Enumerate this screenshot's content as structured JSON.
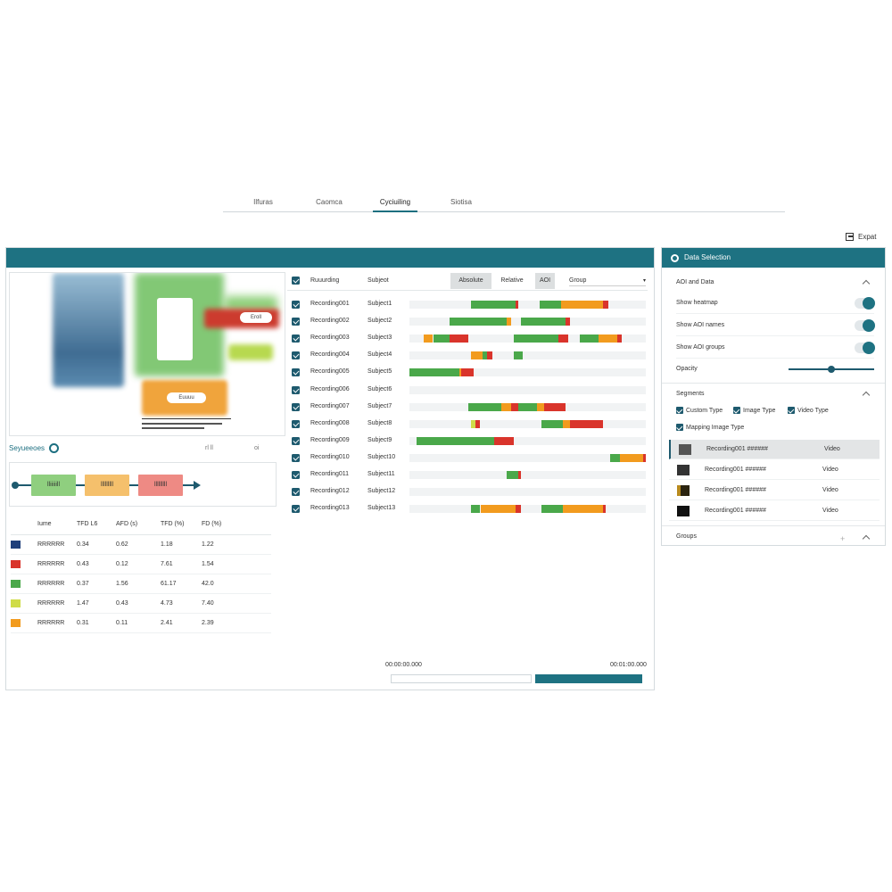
{
  "nav": {
    "tabs": [
      {
        "label": "Ilfuras",
        "active": false
      },
      {
        "label": "Caomca",
        "active": false
      },
      {
        "label": "Cyciuiling",
        "active": true
      },
      {
        "label": "Siotisa",
        "active": false
      }
    ]
  },
  "toolbar": {
    "export_label": "Expat"
  },
  "heatmap": {
    "labels": [
      "Eroll",
      "Euuuu"
    ]
  },
  "sequences": {
    "title": "Seyueeoes",
    "count": "",
    "controls": [
      "rl ll",
      "oi"
    ],
    "chips": [
      {
        "label": "lliiiiill",
        "color": "#8fcf7f"
      },
      {
        "label": "lllllllll",
        "color": "#f5c06c"
      },
      {
        "label": "lllllllll",
        "color": "#ee8a84"
      }
    ]
  },
  "aoi_table": {
    "headers": [
      "Iume",
      "TFD L6",
      "AFD (s)",
      "TFD (%)",
      "FD (%)"
    ],
    "rows": [
      {
        "name": "RRRRRR",
        "color": "#1f3f7a",
        "tfd": "0.34",
        "afd": "0.62",
        "tfd_pct": "1.18",
        "fd_pct": "1.22"
      },
      {
        "name": "RRRRRR",
        "color": "#d9342b",
        "tfd": "0.43",
        "afd": "0.12",
        "tfd_pct": "7.61",
        "fd_pct": "1.54"
      },
      {
        "name": "RRRRRR",
        "color": "#4aa84a",
        "tfd": "0.37",
        "afd": "1.56",
        "tfd_pct": "61.17",
        "fd_pct": "42.0"
      },
      {
        "name": "RRRRRR",
        "color": "#cfdc48",
        "tfd": "1.47",
        "afd": "0.43",
        "tfd_pct": "4.73",
        "fd_pct": "7.40"
      },
      {
        "name": "RRRRRR",
        "color": "#f29b1e",
        "tfd": "0.31",
        "afd": "0.11",
        "tfd_pct": "2.41",
        "fd_pct": "2.39"
      }
    ]
  },
  "recordings": {
    "col_recording": "Ruuurding",
    "col_subject": "Subjeot",
    "segment_buttons": [
      "Absolute",
      "Relative",
      "AOI"
    ],
    "group_label": "Group",
    "rows": [
      {
        "recording": "Recording001",
        "subject": "Subject1",
        "bars": [
          [
            0.26,
            0.19,
            "#4aa84a"
          ],
          [
            0.45,
            0.01,
            "#d9342b"
          ],
          [
            0.55,
            0.09,
            "#4aa84a"
          ],
          [
            0.64,
            0.18,
            "#f29b1e"
          ],
          [
            0.82,
            0.02,
            "#d9342b"
          ]
        ]
      },
      {
        "recording": "Recording002",
        "subject": "Subject2",
        "bars": [
          [
            0.17,
            0.24,
            "#4aa84a"
          ],
          [
            0.41,
            0.02,
            "#f29b1e"
          ],
          [
            0.47,
            0.19,
            "#4aa84a"
          ],
          [
            0.66,
            0.02,
            "#d9342b"
          ]
        ]
      },
      {
        "recording": "Recording003",
        "subject": "Subject3",
        "bars": [
          [
            0.06,
            0.04,
            "#f29b1e"
          ],
          [
            0.1,
            0.07,
            "#4aa84a"
          ],
          [
            0.17,
            0.08,
            "#d9342b"
          ],
          [
            0.44,
            0.19,
            "#4aa84a"
          ],
          [
            0.63,
            0.04,
            "#d9342b"
          ],
          [
            0.72,
            0.08,
            "#4aa84a"
          ],
          [
            0.8,
            0.08,
            "#f29b1e"
          ],
          [
            0.88,
            0.02,
            "#d9342b"
          ]
        ]
      },
      {
        "recording": "Recording004",
        "subject": "Subject4",
        "bars": [
          [
            0.26,
            0.05,
            "#f29b1e"
          ],
          [
            0.31,
            0.02,
            "#4aa84a"
          ],
          [
            0.33,
            0.02,
            "#d9342b"
          ],
          [
            0.44,
            0.04,
            "#4aa84a"
          ]
        ]
      },
      {
        "recording": "Recording005",
        "subject": "Subject5",
        "bars": [
          [
            0.0,
            0.21,
            "#4aa84a"
          ],
          [
            0.21,
            0.01,
            "#f29b1e"
          ],
          [
            0.22,
            0.05,
            "#d9342b"
          ]
        ]
      },
      {
        "recording": "Recording006",
        "subject": "Subject6",
        "bars": []
      },
      {
        "recording": "Recording007",
        "subject": "Subject7",
        "bars": [
          [
            0.25,
            0.14,
            "#4aa84a"
          ],
          [
            0.39,
            0.04,
            "#f29b1e"
          ],
          [
            0.43,
            0.03,
            "#d9342b"
          ],
          [
            0.46,
            0.08,
            "#4aa84a"
          ],
          [
            0.54,
            0.03,
            "#f29b1e"
          ],
          [
            0.57,
            0.09,
            "#d9342b"
          ]
        ]
      },
      {
        "recording": "Recording008",
        "subject": "Subject8",
        "bars": [
          [
            0.26,
            0.02,
            "#cfdc48"
          ],
          [
            0.28,
            0.02,
            "#d9342b"
          ],
          [
            0.56,
            0.09,
            "#4aa84a"
          ],
          [
            0.65,
            0.03,
            "#f29b1e"
          ],
          [
            0.68,
            0.14,
            "#d9342b"
          ]
        ]
      },
      {
        "recording": "Recording009",
        "subject": "Subject9",
        "bars": [
          [
            0.03,
            0.33,
            "#4aa84a"
          ],
          [
            0.36,
            0.08,
            "#d9342b"
          ]
        ]
      },
      {
        "recording": "Recording010",
        "subject": "Subject10",
        "bars": [
          [
            0.85,
            0.04,
            "#4aa84a"
          ],
          [
            0.89,
            0.1,
            "#f29b1e"
          ],
          [
            0.99,
            0.01,
            "#d9342b"
          ]
        ]
      },
      {
        "recording": "Recording011",
        "subject": "Subject11",
        "bars": [
          [
            0.41,
            0.05,
            "#4aa84a"
          ],
          [
            0.46,
            0.01,
            "#d9342b"
          ]
        ]
      },
      {
        "recording": "Recording012",
        "subject": "Subject12",
        "bars": []
      },
      {
        "recording": "Recording013",
        "subject": "Subject13",
        "bars": [
          [
            0.26,
            0.04,
            "#4aa84a"
          ],
          [
            0.3,
            0.15,
            "#f29b1e"
          ],
          [
            0.45,
            0.02,
            "#d9342b"
          ],
          [
            0.56,
            0.09,
            "#4aa84a"
          ],
          [
            0.65,
            0.17,
            "#f29b1e"
          ],
          [
            0.82,
            0.01,
            "#d9342b"
          ]
        ]
      }
    ]
  },
  "timeline": {
    "start": "00:00:00.000",
    "end": "00:01:00.000",
    "position": 0.6
  },
  "side_panel": {
    "title": "Data Selection",
    "aoi_section": {
      "title": "AOI and Data",
      "options": [
        {
          "label": "Show heatmap",
          "on": true
        },
        {
          "label": "Show AOI names",
          "on": true
        },
        {
          "label": "Show AOI groups",
          "on": true
        }
      ],
      "opacity_label": "Opacity",
      "opacity_value": 0.5
    },
    "segments_section": {
      "title": "Segments",
      "filters": [
        "Custom Type",
        "Image Type",
        "Video Type",
        "Mapping Image Type"
      ],
      "items": [
        {
          "name": "Recording001 ######",
          "type": "Video",
          "selected": true
        },
        {
          "name": "Recording001 ######",
          "type": "Video",
          "selected": false
        },
        {
          "name": "Recording001 ######",
          "type": "Video",
          "selected": false
        },
        {
          "name": "Recording001 ######",
          "type": "Video",
          "selected": false
        }
      ]
    },
    "groups_section": {
      "title": "Groups"
    }
  },
  "colors": {
    "accent": "#1e7282",
    "green": "#4aa84a",
    "orange": "#f29b1e",
    "red": "#d9342b"
  }
}
